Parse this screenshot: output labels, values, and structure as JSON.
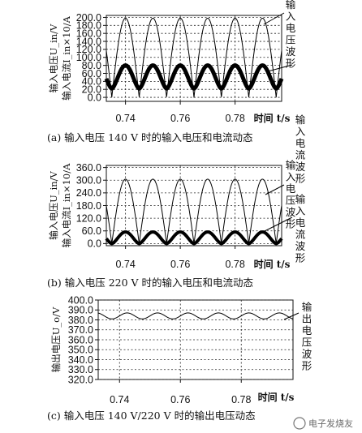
{
  "chart_data": [
    {
      "type": "line",
      "caption": "(a) 输入电压 140 V 时的输入电压和电流动态",
      "ylabel_lines": [
        "输入电压U_in/V",
        "输入电流I_in×10/A"
      ],
      "xlabel": "时间 t/s",
      "xlim": [
        0.733,
        0.797
      ],
      "ylim": [
        -10,
        205
      ],
      "xticks": [
        "0.74",
        "0.76",
        "0.78"
      ],
      "yticks": [
        "0.0",
        "20.0",
        "40.0",
        "60.0",
        "80.0",
        "100.0",
        "120.0",
        "140.0",
        "160.0",
        "180.0",
        "200.0"
      ],
      "grid": true,
      "series": [
        {
          "label_lines": [
            "输",
            "入",
            "电",
            "压",
            "波",
            "形"
          ],
          "shape": "rectified-sine",
          "amplitude": 198,
          "frequency_hz": 50,
          "phase_s": 0.005,
          "width": 1
        },
        {
          "label_lines": [
            "输",
            "入",
            "电",
            "流",
            "波",
            "形"
          ],
          "shape": "rectified-sine-thick",
          "amplitude": 80,
          "base": 22,
          "frequency_hz": 50,
          "phase_s": 0.005,
          "width": 5
        }
      ]
    },
    {
      "type": "line",
      "caption": "(b) 输入电压 220 V 时的输入电压和电流动态",
      "ylabel_lines": [
        "输入电压U_in/V",
        "输入电流I_in×10/A"
      ],
      "xlabel": "时间 t/s",
      "xlim": [
        0.733,
        0.797
      ],
      "ylim": [
        -10,
        370
      ],
      "xticks": [
        "0.74",
        "0.76",
        "0.78"
      ],
      "yticks": [
        "0.0",
        "60.0",
        "120.0",
        "180.0",
        "240.0",
        "300.0",
        "360.0"
      ],
      "grid": true,
      "series": [
        {
          "label_lines": [
            "输",
            "入",
            "电",
            "压",
            "波",
            "形"
          ],
          "shape": "rectified-sine",
          "amplitude": 305,
          "frequency_hz": 50,
          "phase_s": 0.005,
          "width": 1
        },
        {
          "label_lines": [
            "输",
            "入",
            "电",
            "流",
            "波",
            "形"
          ],
          "shape": "rectified-sine-thick",
          "amplitude": 55,
          "base": 0,
          "frequency_hz": 50,
          "phase_s": 0.005,
          "width": 4
        }
      ]
    },
    {
      "type": "line",
      "caption": "(c) 输入电压 140 V/220 V 时的输出电压动态",
      "ylabel_lines": [
        "输出电压U_o/V"
      ],
      "xlabel": "时间 t/s",
      "xlim": [
        0.733,
        0.797
      ],
      "ylim": [
        320,
        400
      ],
      "xticks": [
        "0.74",
        "0.76",
        "0.78"
      ],
      "yticks": [
        "320.0",
        "330.0",
        "340.0",
        "350.0",
        "360.0",
        "370.0",
        "380.0",
        "390.0",
        "400.0"
      ],
      "grid": true,
      "series": [
        {
          "label_lines": [
            "输",
            "出",
            "电",
            "压",
            "波",
            "形"
          ],
          "shape": "ripple",
          "mean": 384,
          "ripple": 3,
          "frequency_hz": 100,
          "width": 1
        }
      ]
    }
  ],
  "watermark": "电子发烧友"
}
